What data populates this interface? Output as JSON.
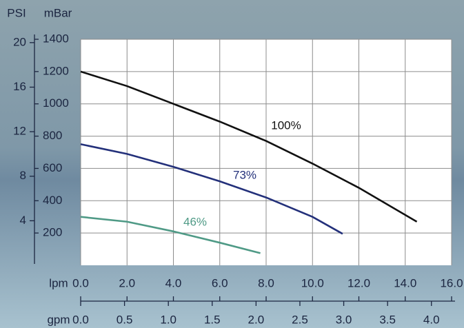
{
  "chart_data": {
    "type": "line",
    "x_label": "lpm",
    "x2_label": "gpm",
    "y_label": "mBar",
    "y2_label": "PSI",
    "xlim": [
      0,
      16
    ],
    "xticks": [
      {
        "value": 0,
        "label": "0.0"
      },
      {
        "value": 2,
        "label": "2.0"
      },
      {
        "value": 4,
        "label": "4.0"
      },
      {
        "value": 6,
        "label": "6.0"
      },
      {
        "value": 8,
        "label": "8.0"
      },
      {
        "value": 10,
        "label": "10.0"
      },
      {
        "value": 12,
        "label": "12.0"
      },
      {
        "value": 14,
        "label": "14.0"
      },
      {
        "value": 16,
        "label": "16.0"
      }
    ],
    "x2lim": [
      0,
      4.23
    ],
    "x2ticks": [
      {
        "value": 0,
        "label": "0.0"
      },
      0.5,
      {
        "value": 1,
        "label": "1.0"
      },
      1.5,
      {
        "value": 2,
        "label": "2.0"
      },
      2.5,
      {
        "value": 3,
        "label": "3.0"
      },
      3.5,
      {
        "value": 4,
        "label": "4.0"
      }
    ],
    "ylim": [
      0,
      1400
    ],
    "yticks": [
      200,
      400,
      600,
      800,
      1000,
      1200,
      1400
    ],
    "y2lim": [
      0,
      20.3
    ],
    "y2ticks": [
      4,
      8,
      12,
      16,
      20
    ],
    "grid": true,
    "series": [
      {
        "name": "100%",
        "color": "#111111",
        "x": [
          0,
          2,
          4,
          6,
          8,
          10,
          12,
          14.5
        ],
        "values": [
          1200,
          1110,
          1000,
          890,
          770,
          630,
          480,
          270
        ]
      },
      {
        "name": "73%",
        "color": "#23307a",
        "x": [
          0,
          2,
          4,
          6,
          8,
          10,
          11.3
        ],
        "values": [
          750,
          690,
          610,
          520,
          420,
          300,
          195
        ]
      },
      {
        "name": "46%",
        "color": "#4f9a86",
        "x": [
          0,
          2,
          4,
          6,
          7.75
        ],
        "values": [
          300,
          270,
          210,
          140,
          75
        ]
      }
    ]
  }
}
